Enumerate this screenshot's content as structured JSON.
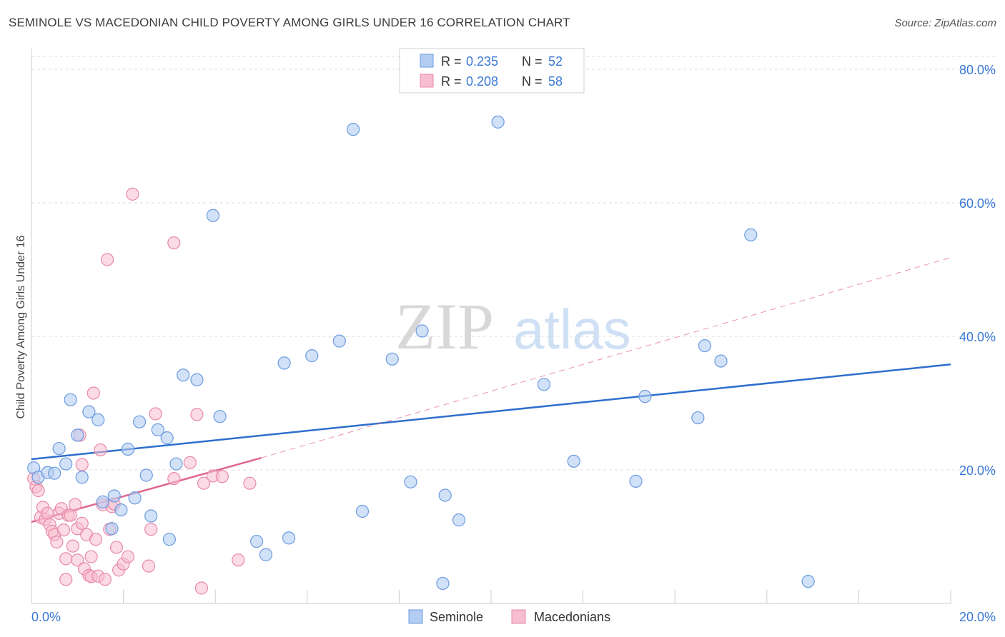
{
  "header": {
    "title": "SEMINOLE VS MACEDONIAN CHILD POVERTY AMONG GIRLS UNDER 16 CORRELATION CHART",
    "source": "Source: ZipAtlas.com"
  },
  "watermark": {
    "zip": "ZIP",
    "atlas": "atlas"
  },
  "colors": {
    "seminole_fill": "#b3cdf2",
    "seminole_stroke": "#6b9be0",
    "seminole_line": "#2e6fcc",
    "macedonian_fill": "#f7bdd0",
    "macedonian_stroke": "#e889a8",
    "macedonian_line": "#e0658f",
    "value_blue": "#3a78d4",
    "grid": "#dddddd"
  },
  "stats_legend": {
    "rows": [
      {
        "r_label": "R =",
        "r_value": "0.235",
        "n_label": "N =",
        "n_value": "52"
      },
      {
        "r_label": "R =",
        "r_value": "0.208",
        "n_label": "N =",
        "n_value": "58"
      }
    ]
  },
  "bottom_legend": {
    "items": [
      "Seminole",
      "Macedonians"
    ]
  },
  "chart_data": {
    "type": "scatter",
    "title": "SEMINOLE VS MACEDONIAN CHILD POVERTY AMONG GIRLS UNDER 16 CORRELATION CHART",
    "ylabel": "Child Poverty Among Girls Under 16",
    "xlabel": "",
    "xlim": [
      0,
      20
    ],
    "ylim": [
      0,
      80
    ],
    "x_tick_labels": [
      "0.0%",
      "20.0%"
    ],
    "y_tick_labels": [
      "20.0%",
      "40.0%",
      "60.0%",
      "80.0%"
    ],
    "y_ticks": [
      20,
      40,
      60,
      80
    ],
    "grid": true,
    "legend_position": "top-center",
    "series": [
      {
        "name": "Seminole",
        "R": 0.235,
        "N": 52,
        "trend": {
          "x": [
            0,
            20
          ],
          "y": [
            21.6,
            35.8
          ],
          "style": "solid"
        },
        "points": [
          [
            0.05,
            20.3
          ],
          [
            0.15,
            18.9
          ],
          [
            0.35,
            19.6
          ],
          [
            0.5,
            19.5
          ],
          [
            0.6,
            23.2
          ],
          [
            0.75,
            20.9
          ],
          [
            0.85,
            30.5
          ],
          [
            1.1,
            18.9
          ],
          [
            1.25,
            28.7
          ],
          [
            1.0,
            25.2
          ],
          [
            1.45,
            27.5
          ],
          [
            1.55,
            15.2
          ],
          [
            1.75,
            11.2
          ],
          [
            1.8,
            16.1
          ],
          [
            1.95,
            14.0
          ],
          [
            2.1,
            23.1
          ],
          [
            2.25,
            15.8
          ],
          [
            2.35,
            27.2
          ],
          [
            2.5,
            19.2
          ],
          [
            2.6,
            13.1
          ],
          [
            2.75,
            26.0
          ],
          [
            2.95,
            24.8
          ],
          [
            3.0,
            9.6
          ],
          [
            3.15,
            20.9
          ],
          [
            3.3,
            34.2
          ],
          [
            3.6,
            33.5
          ],
          [
            3.95,
            58.1
          ],
          [
            4.1,
            28.0
          ],
          [
            4.9,
            9.3
          ],
          [
            5.1,
            7.3
          ],
          [
            5.5,
            36.0
          ],
          [
            5.6,
            9.8
          ],
          [
            6.1,
            37.1
          ],
          [
            6.7,
            39.3
          ],
          [
            7.0,
            71.0
          ],
          [
            7.2,
            13.8
          ],
          [
            7.85,
            36.6
          ],
          [
            8.25,
            18.2
          ],
          [
            8.5,
            40.8
          ],
          [
            8.95,
            3.0
          ],
          [
            9.0,
            16.2
          ],
          [
            9.3,
            12.5
          ],
          [
            10.15,
            72.1
          ],
          [
            11.15,
            32.8
          ],
          [
            11.8,
            21.3
          ],
          [
            13.35,
            31.0
          ],
          [
            13.15,
            18.3
          ],
          [
            14.5,
            27.8
          ],
          [
            14.65,
            38.6
          ],
          [
            15.0,
            36.3
          ],
          [
            15.65,
            55.2
          ],
          [
            16.9,
            3.3
          ]
        ]
      },
      {
        "name": "Macedonians",
        "R": 0.208,
        "N": 58,
        "trend": {
          "x": [
            0,
            5.0
          ],
          "y": [
            12.2,
            21.8
          ],
          "style": "solid",
          "extended": {
            "x": [
              5.0,
              20
            ],
            "y": [
              21.8,
              51.8
            ],
            "style": "dashed"
          }
        },
        "points": [
          [
            0.05,
            18.7
          ],
          [
            0.1,
            17.5
          ],
          [
            0.15,
            16.9
          ],
          [
            0.2,
            12.9
          ],
          [
            0.25,
            14.4
          ],
          [
            0.3,
            12.6
          ],
          [
            0.35,
            13.5
          ],
          [
            0.4,
            11.8
          ],
          [
            0.45,
            10.8
          ],
          [
            0.5,
            10.3
          ],
          [
            0.55,
            9.2
          ],
          [
            0.6,
            13.5
          ],
          [
            0.65,
            14.2
          ],
          [
            0.7,
            11.0
          ],
          [
            0.75,
            6.7
          ],
          [
            0.75,
            3.6
          ],
          [
            0.8,
            13.2
          ],
          [
            0.85,
            13.2
          ],
          [
            0.9,
            8.6
          ],
          [
            0.95,
            14.8
          ],
          [
            1.0,
            11.2
          ],
          [
            1.0,
            6.5
          ],
          [
            1.05,
            25.2
          ],
          [
            1.1,
            12.0
          ],
          [
            1.1,
            20.8
          ],
          [
            1.15,
            5.2
          ],
          [
            1.2,
            10.3
          ],
          [
            1.25,
            4.2
          ],
          [
            1.3,
            7.0
          ],
          [
            1.3,
            4.0
          ],
          [
            1.35,
            31.5
          ],
          [
            1.4,
            9.6
          ],
          [
            1.45,
            4.1
          ],
          [
            1.5,
            23.0
          ],
          [
            1.55,
            14.8
          ],
          [
            1.6,
            3.6
          ],
          [
            1.65,
            51.5
          ],
          [
            1.7,
            11.1
          ],
          [
            1.75,
            14.5
          ],
          [
            1.8,
            14.9
          ],
          [
            1.85,
            8.4
          ],
          [
            1.9,
            5.0
          ],
          [
            2.0,
            5.9
          ],
          [
            2.1,
            7.0
          ],
          [
            2.2,
            61.3
          ],
          [
            2.55,
            5.6
          ],
          [
            2.6,
            11.1
          ],
          [
            2.7,
            28.4
          ],
          [
            3.1,
            18.7
          ],
          [
            3.1,
            54.0
          ],
          [
            3.45,
            21.1
          ],
          [
            3.6,
            28.3
          ],
          [
            3.7,
            2.3
          ],
          [
            3.75,
            18.0
          ],
          [
            3.95,
            19.1
          ],
          [
            4.15,
            19.0
          ],
          [
            4.5,
            6.5
          ],
          [
            4.75,
            18.0
          ]
        ]
      }
    ]
  }
}
